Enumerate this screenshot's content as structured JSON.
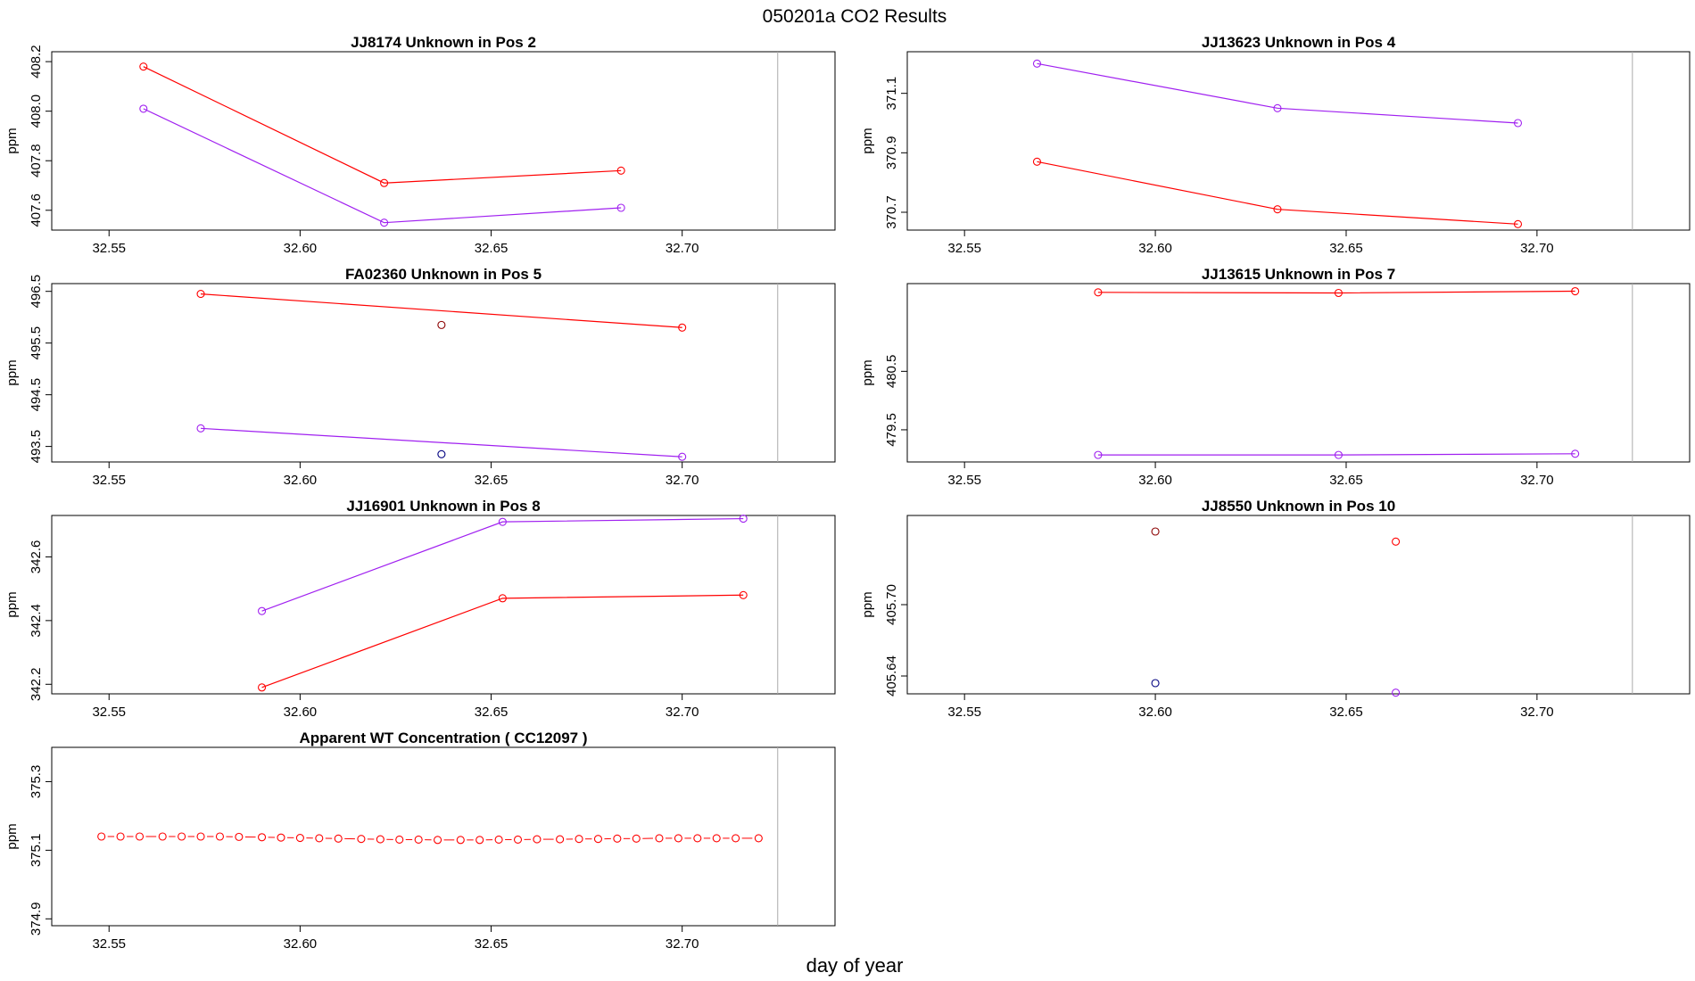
{
  "figure": {
    "title": "050201a  CO2 Results",
    "xlabel": "day of year"
  },
  "chart_data": [
    {
      "type": "line",
      "title": "JJ8174    Unknown in Pos 2",
      "xlabel": "day of year",
      "ylabel": "ppm",
      "xlim": [
        32.535,
        32.74
      ],
      "ylim": [
        407.52,
        408.24
      ],
      "xticks": [
        "32.55",
        "32.60",
        "32.65",
        "32.70"
      ],
      "yticks": [
        "407.6",
        "407.8",
        "408.0",
        "408.2"
      ],
      "ref_x": 32.725,
      "series": [
        {
          "name": "red",
          "color": "#ff0000",
          "style": "solid",
          "x": [
            32.559,
            32.622,
            32.684
          ],
          "y": [
            408.18,
            407.71,
            407.76
          ]
        },
        {
          "name": "purple",
          "color": "#a020f0",
          "style": "solid",
          "x": [
            32.559,
            32.622,
            32.684
          ],
          "y": [
            408.01,
            407.55,
            407.61
          ]
        }
      ],
      "points": []
    },
    {
      "type": "line",
      "title": "JJ13623    Unknown in Pos 4",
      "xlabel": "day of year",
      "ylabel": "ppm",
      "xlim": [
        32.535,
        32.74
      ],
      "ylim": [
        370.64,
        371.24
      ],
      "xticks": [
        "32.55",
        "32.60",
        "32.65",
        "32.70"
      ],
      "yticks": [
        "370.7",
        "370.9",
        "371.1"
      ],
      "ref_x": 32.725,
      "series": [
        {
          "name": "purple",
          "color": "#a020f0",
          "style": "solid",
          "x": [
            32.569,
            32.632,
            32.695
          ],
          "y": [
            371.2,
            371.05,
            371.0
          ]
        },
        {
          "name": "red",
          "color": "#ff0000",
          "style": "solid",
          "x": [
            32.569,
            32.632,
            32.695
          ],
          "y": [
            370.87,
            370.71,
            370.66
          ]
        }
      ],
      "points": []
    },
    {
      "type": "line",
      "title": "FA02360    Unknown in Pos 5",
      "xlabel": "day of year",
      "ylabel": "ppm",
      "xlim": [
        32.535,
        32.74
      ],
      "ylim": [
        493.2,
        496.65
      ],
      "xticks": [
        "32.55",
        "32.60",
        "32.65",
        "32.70"
      ],
      "yticks": [
        "493.5",
        "494.5",
        "495.5",
        "496.5"
      ],
      "ref_x": 32.725,
      "series": [
        {
          "name": "red",
          "color": "#ff0000",
          "style": "solid",
          "x": [
            32.574,
            32.7
          ],
          "y": [
            496.45,
            495.8
          ]
        },
        {
          "name": "purple",
          "color": "#a020f0",
          "style": "solid",
          "x": [
            32.574,
            32.7
          ],
          "y": [
            493.85,
            493.3
          ]
        }
      ],
      "points": [
        {
          "x": 32.637,
          "y": 495.85,
          "color": "#8b0000"
        },
        {
          "x": 32.637,
          "y": 493.35,
          "color": "#000080"
        }
      ]
    },
    {
      "type": "line",
      "title": "JJ13615    Unknown in Pos 7",
      "xlabel": "day of year",
      "ylabel": "ppm",
      "xlim": [
        32.535,
        32.74
      ],
      "ylim": [
        478.95,
        482.0
      ],
      "xticks": [
        "32.55",
        "32.60",
        "32.65",
        "32.70"
      ],
      "yticks": [
        "479.5",
        "480.5"
      ],
      "ref_x": 32.725,
      "series": [
        {
          "name": "red",
          "color": "#ff0000",
          "style": "solid",
          "x": [
            32.585,
            32.648,
            32.71
          ],
          "y": [
            481.85,
            481.84,
            481.87
          ]
        },
        {
          "name": "purple",
          "color": "#a020f0",
          "style": "solid",
          "x": [
            32.585,
            32.648,
            32.71
          ],
          "y": [
            479.07,
            479.07,
            479.09
          ]
        }
      ],
      "points": []
    },
    {
      "type": "line",
      "title": "JJ16901    Unknown in Pos 8",
      "xlabel": "day of year",
      "ylabel": "ppm",
      "xlim": [
        32.535,
        32.74
      ],
      "ylim": [
        342.17,
        342.73
      ],
      "xticks": [
        "32.55",
        "32.60",
        "32.65",
        "32.70"
      ],
      "yticks": [
        "342.2",
        "342.4",
        "342.6"
      ],
      "ref_x": 32.725,
      "series": [
        {
          "name": "purple",
          "color": "#a020f0",
          "style": "solid",
          "x": [
            32.59,
            32.653,
            32.716
          ],
          "y": [
            342.43,
            342.71,
            342.72
          ]
        },
        {
          "name": "red",
          "color": "#ff0000",
          "style": "solid",
          "x": [
            32.59,
            32.653,
            32.716
          ],
          "y": [
            342.19,
            342.47,
            342.48
          ]
        }
      ],
      "points": []
    },
    {
      "type": "scatter",
      "title": "JJ8550    Unknown in Pos 10",
      "xlabel": "day of year",
      "ylabel": "ppm",
      "xlim": [
        32.535,
        32.74
      ],
      "ylim": [
        405.625,
        405.775
      ],
      "xticks": [
        "32.55",
        "32.60",
        "32.65",
        "32.70"
      ],
      "yticks": [
        "405.64",
        "405.70"
      ],
      "ref_x": 32.725,
      "series": [],
      "points": [
        {
          "x": 32.6,
          "y": 405.7615,
          "color": "#8b0000"
        },
        {
          "x": 32.663,
          "y": 405.753,
          "color": "#ff0000"
        },
        {
          "x": 32.6,
          "y": 405.634,
          "color": "#000080"
        },
        {
          "x": 32.663,
          "y": 405.626,
          "color": "#a020f0"
        }
      ]
    },
    {
      "type": "line",
      "title": "Apparent WT Concentration ( CC12097 )",
      "xlabel": "day of year",
      "ylabel": "ppm",
      "xlim": [
        32.535,
        32.74
      ],
      "ylim": [
        374.88,
        375.4
      ],
      "xticks": [
        "32.55",
        "32.60",
        "32.65",
        "32.70"
      ],
      "yticks": [
        "374.9",
        "375.1",
        "375.3"
      ],
      "ref_x": 32.725,
      "series": [
        {
          "name": "red",
          "color": "#ff0000",
          "style": "dashed",
          "x": [
            32.548,
            32.553,
            32.558,
            32.564,
            32.569,
            32.574,
            32.579,
            32.584,
            32.59,
            32.595,
            32.6,
            32.605,
            32.61,
            32.616,
            32.621,
            32.626,
            32.631,
            32.636,
            32.642,
            32.647,
            32.652,
            32.657,
            32.662,
            32.668,
            32.673,
            32.678,
            32.683,
            32.688,
            32.694,
            32.699,
            32.704,
            32.709,
            32.714,
            32.72
          ],
          "y": [
            375.14,
            375.14,
            375.14,
            375.14,
            375.14,
            375.14,
            375.14,
            375.139,
            375.138,
            375.137,
            375.136,
            375.135,
            375.134,
            375.133,
            375.132,
            375.131,
            375.131,
            375.13,
            375.13,
            375.13,
            375.131,
            375.131,
            375.132,
            375.132,
            375.133,
            375.133,
            375.134,
            375.134,
            375.135,
            375.135,
            375.135,
            375.135,
            375.135,
            375.135
          ]
        }
      ],
      "points": []
    }
  ]
}
